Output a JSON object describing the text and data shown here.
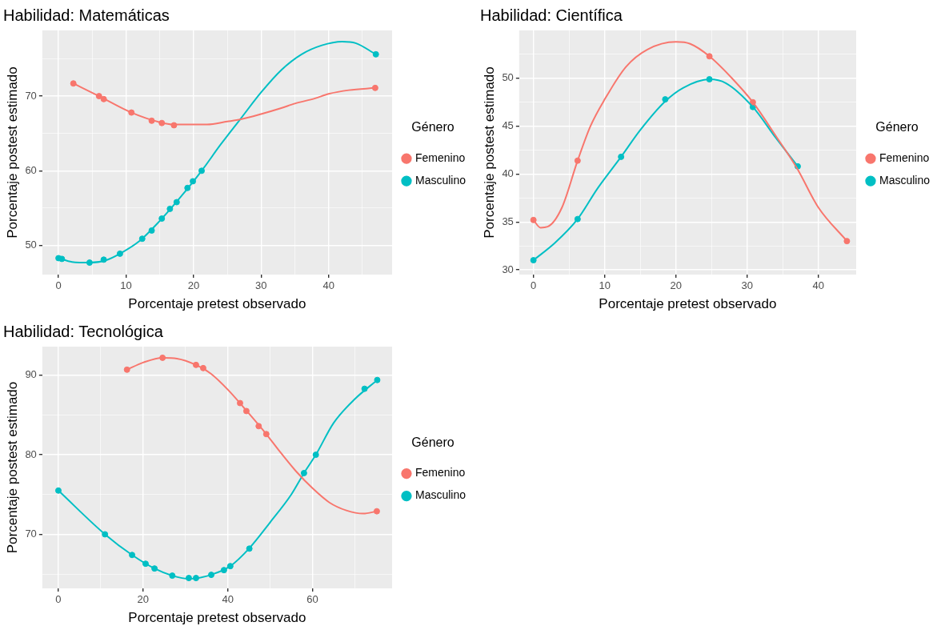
{
  "chart_data": [
    {
      "type": "line",
      "title": "Habilidad: Matemáticas",
      "xlabel": "Porcentaje pretest observado",
      "ylabel": "Porcentaje postest estimado",
      "legend_title": "Género",
      "legend": "right",
      "grid": true,
      "xlim": [
        -2.4,
        49.4
      ],
      "xticks": [
        0,
        {
          "value": 5,
          "label": null
        },
        10,
        {
          "value": 15,
          "label": null
        },
        20,
        {
          "value": 25,
          "label": null
        },
        30,
        {
          "value": 35,
          "label": null
        },
        40,
        {
          "value": 45,
          "label": null
        }
      ],
      "ylim": [
        46.1,
        78.8
      ],
      "yticks": [
        50,
        {
          "value": 55,
          "label": null
        },
        60,
        {
          "value": 65,
          "label": null
        },
        70,
        {
          "value": 75,
          "label": null
        }
      ],
      "series": [
        {
          "type": "line",
          "name": "Femenino",
          "color": "#f8766d",
          "marker": "none",
          "x": [
            2.2,
            6.0,
            10.8,
            15,
            17,
            20,
            22,
            25,
            27,
            30,
            33,
            35,
            38,
            40,
            43,
            46.9
          ],
          "values": [
            71.7,
            70.0,
            67.8,
            66.5,
            66.2,
            66.2,
            66.2,
            66.6,
            66.9,
            67.6,
            68.4,
            69.0,
            69.7,
            70.3,
            70.8,
            71.1
          ]
        },
        {
          "type": "line",
          "name": "Masculino",
          "color": "#00bfc4",
          "marker": "none",
          "x": [
            0,
            2,
            4.6,
            7,
            9.1,
            12,
            15,
            18,
            21.2,
            24,
            27,
            30,
            33,
            36,
            39,
            42,
            44,
            47
          ],
          "values": [
            48.3,
            47.8,
            47.7,
            48.0,
            48.9,
            50.6,
            53.3,
            56.4,
            60.0,
            63.5,
            67.0,
            70.5,
            73.5,
            75.6,
            76.8,
            77.3,
            77.1,
            75.6
          ]
        },
        {
          "type": "scatter",
          "color": "#f8766d",
          "marker": "circle",
          "x": [
            2.2,
            6.0,
            6.7,
            10.8,
            13.8,
            15.3,
            17.1,
            46.9
          ],
          "values": [
            71.7,
            70.0,
            69.6,
            67.8,
            66.7,
            66.4,
            66.1,
            71.1
          ]
        },
        {
          "type": "scatter",
          "color": "#00bfc4",
          "marker": "circle",
          "x": [
            0,
            0.5,
            4.6,
            6.7,
            9.1,
            12.4,
            13.8,
            15.3,
            16.5,
            17.5,
            19.1,
            19.9,
            21.2,
            47.0
          ],
          "values": [
            48.3,
            48.2,
            47.7,
            48.1,
            48.9,
            50.9,
            52.0,
            53.6,
            54.9,
            55.8,
            57.7,
            58.6,
            60.0,
            75.6
          ]
        }
      ]
    },
    {
      "type": "line",
      "title": "Habilidad: Científica",
      "xlabel": "Porcentaje pretest observado",
      "ylabel": "Porcentaje postest estimado",
      "legend_title": "Género",
      "legend": "right",
      "grid": true,
      "xlim": [
        -2.0,
        45.3
      ],
      "xticks": [
        0,
        {
          "value": 5,
          "label": null
        },
        10,
        {
          "value": 15,
          "label": null
        },
        20,
        {
          "value": 25,
          "label": null
        },
        30,
        {
          "value": 35,
          "label": null
        },
        40
      ],
      "ylim": [
        29.5,
        55
      ],
      "yticks": [
        30,
        {
          "value": 32.5,
          "label": null
        },
        35,
        {
          "value": 37.5,
          "label": null
        },
        40,
        {
          "value": 42.5,
          "label": null
        },
        45,
        {
          "value": 47.5,
          "label": null
        },
        50,
        {
          "value": 52.5,
          "label": null
        }
      ],
      "series": [
        {
          "type": "line",
          "name": "Femenino",
          "color": "#f8766d",
          "marker": "none",
          "x": [
            0,
            1,
            2,
            4,
            6.2,
            8,
            10,
            13,
            16,
            20,
            22,
            24.7,
            28,
            30.8,
            34,
            37,
            40,
            44
          ],
          "values": [
            35.2,
            34.4,
            34.5,
            36.5,
            41.4,
            45.0,
            47.8,
            51.2,
            53.0,
            53.8,
            53.6,
            52.3,
            49.9,
            47.5,
            44.0,
            40.6,
            36.5,
            33.0
          ]
        },
        {
          "type": "line",
          "name": "Masculino",
          "color": "#00bfc4",
          "marker": "none",
          "x": [
            0,
            3,
            6.2,
            9,
            12.3,
            15,
            18.5,
            21,
            24.7,
            27,
            30.8,
            34,
            37.1
          ],
          "values": [
            31.0,
            32.8,
            35.3,
            38.5,
            41.8,
            44.6,
            47.6,
            49.0,
            49.9,
            49.5,
            47.0,
            43.8,
            40.8
          ]
        },
        {
          "type": "scatter",
          "color": "#f8766d",
          "marker": "circle",
          "x": [
            0,
            6.2,
            24.7,
            30.8,
            44.0
          ],
          "values": [
            35.2,
            41.4,
            52.3,
            47.5,
            33.0
          ]
        },
        {
          "type": "scatter",
          "color": "#00bfc4",
          "marker": "circle",
          "x": [
            0,
            6.2,
            12.3,
            18.5,
            24.7,
            30.8,
            37.1
          ],
          "values": [
            31.0,
            35.3,
            41.8,
            47.8,
            49.9,
            47.0,
            40.8
          ]
        }
      ]
    },
    {
      "type": "line",
      "title": "Habilidad: Tecnológica",
      "xlabel": "Porcentaje pretest observado",
      "ylabel": "Porcentaje postest estimado",
      "legend_title": "Género",
      "legend": "right",
      "grid": true,
      "xlim": [
        -3.8,
        78.8
      ],
      "xticks": [
        0,
        {
          "value": 10,
          "label": null
        },
        20,
        {
          "value": 30,
          "label": null
        },
        40,
        {
          "value": 50,
          "label": null
        },
        60,
        {
          "value": 70,
          "label": null
        }
      ],
      "ylim": [
        63.2,
        93.6
      ],
      "yticks": [
        {
          "value": 65,
          "label": null
        },
        70,
        {
          "value": 75,
          "label": null
        },
        80,
        {
          "value": 85,
          "label": null
        },
        90
      ],
      "series": [
        {
          "type": "line",
          "name": "Femenino",
          "color": "#f8766d",
          "marker": "none",
          "x": [
            16.2,
            20,
            24.6,
            28,
            32.5,
            36,
            40,
            44,
            49.1,
            52,
            56,
            60,
            64,
            68,
            72,
            75.2
          ],
          "values": [
            90.7,
            91.6,
            92.2,
            92.1,
            91.3,
            90.2,
            88.2,
            85.8,
            82.6,
            80.6,
            78.0,
            75.8,
            74.0,
            73.0,
            72.6,
            72.9
          ]
        },
        {
          "type": "line",
          "name": "Masculino",
          "color": "#00bfc4",
          "marker": "none",
          "x": [
            0,
            11,
            17.4,
            22.7,
            26.9,
            31,
            36,
            40.6,
            45,
            50,
            55,
            58,
            60.8,
            65,
            70,
            75.3
          ],
          "values": [
            75.5,
            70.0,
            67.4,
            65.7,
            64.8,
            64.4,
            64.9,
            66.0,
            68.2,
            71.5,
            75.0,
            77.7,
            80.0,
            84.0,
            87.0,
            89.4
          ]
        },
        {
          "type": "scatter",
          "color": "#f8766d",
          "marker": "circle",
          "x": [
            16.2,
            24.6,
            32.5,
            34.2,
            42.9,
            44.4,
            47.3,
            49.1,
            75.2
          ],
          "values": [
            90.7,
            92.2,
            91.3,
            90.9,
            86.5,
            85.5,
            83.6,
            82.6,
            72.9
          ]
        },
        {
          "type": "scatter",
          "color": "#00bfc4",
          "marker": "circle",
          "x": [
            0,
            11,
            17.4,
            20.6,
            22.7,
            26.9,
            30.8,
            32.5,
            36.1,
            39.1,
            40.6,
            45.1,
            58.0,
            60.8,
            72.3,
            75.3
          ],
          "values": [
            75.5,
            70.0,
            67.4,
            66.3,
            65.7,
            64.8,
            64.5,
            64.5,
            64.9,
            65.5,
            66.0,
            68.2,
            77.7,
            80.0,
            88.3,
            89.4
          ]
        }
      ]
    }
  ]
}
